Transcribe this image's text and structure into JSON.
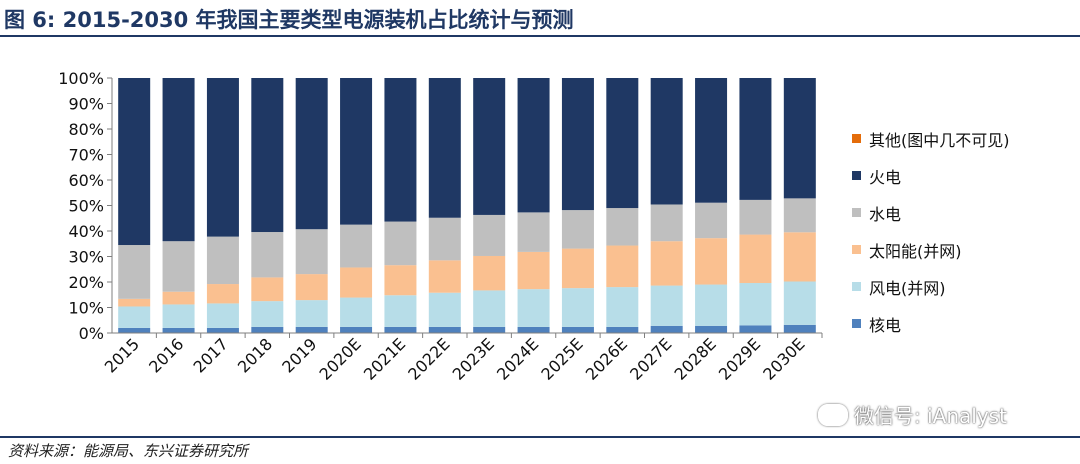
{
  "title": "图 6: 2015-2030 年我国主要类型电源装机占比统计与预测",
  "source": "资料来源：能源局、东兴证券研究所",
  "watermark": "微信号: iAnalyst",
  "chart_data": {
    "type": "bar",
    "stacked": true,
    "categories": [
      "2015",
      "2016",
      "2017",
      "2018",
      "2019",
      "2020E",
      "2021E",
      "2022E",
      "2023E",
      "2024E",
      "2025E",
      "2026E",
      "2027E",
      "2028E",
      "2029E",
      "2030E"
    ],
    "ylim": [
      0,
      100
    ],
    "yticks": [
      "0%",
      "10%",
      "20%",
      "30%",
      "40%",
      "50%",
      "60%",
      "70%",
      "80%",
      "90%",
      "100%"
    ],
    "legend_position": "right",
    "series": [
      {
        "name": "核电",
        "color": "#4f81bd",
        "values": [
          2,
          2,
          2,
          2.4,
          2.4,
          2.4,
          2.4,
          2.4,
          2.4,
          2.4,
          2.4,
          2.4,
          2.8,
          2.8,
          3.0,
          3.2
        ]
      },
      {
        "name": "风电(并网)",
        "color": "#b7dde8",
        "values": [
          8.4,
          9.2,
          9.6,
          10.1,
          10.5,
          11.5,
          12.4,
          13.4,
          14.3,
          14.8,
          15.2,
          15.6,
          15.8,
          16.2,
          16.6,
          17.0
        ]
      },
      {
        "name": "太阳能(并网)",
        "color": "#fac090",
        "values": [
          3.0,
          5.0,
          7.6,
          9.3,
          10.2,
          11.8,
          11.8,
          12.7,
          13.5,
          14.6,
          15.5,
          16.3,
          17.4,
          18.2,
          19.0,
          19.3
        ]
      },
      {
        "name": "水电",
        "color": "#bfbfbf",
        "values": [
          21.1,
          19.8,
          18.6,
          17.8,
          17.6,
          16.8,
          17.1,
          16.7,
          16.1,
          15.5,
          15.1,
          14.7,
          14.4,
          13.9,
          13.6,
          13.3
        ]
      },
      {
        "name": "火电",
        "color": "#1f3864",
        "values": [
          65.5,
          64.0,
          62.2,
          60.4,
          59.3,
          57.5,
          56.3,
          54.8,
          53.7,
          52.7,
          51.8,
          51.0,
          49.6,
          48.9,
          47.8,
          47.2
        ]
      },
      {
        "name": "其他(图中几不可见)",
        "color": "#e46c0a",
        "values": [
          0,
          0,
          0,
          0,
          0,
          0,
          0,
          0,
          0,
          0,
          0,
          0,
          0,
          0,
          0,
          0
        ]
      }
    ]
  }
}
